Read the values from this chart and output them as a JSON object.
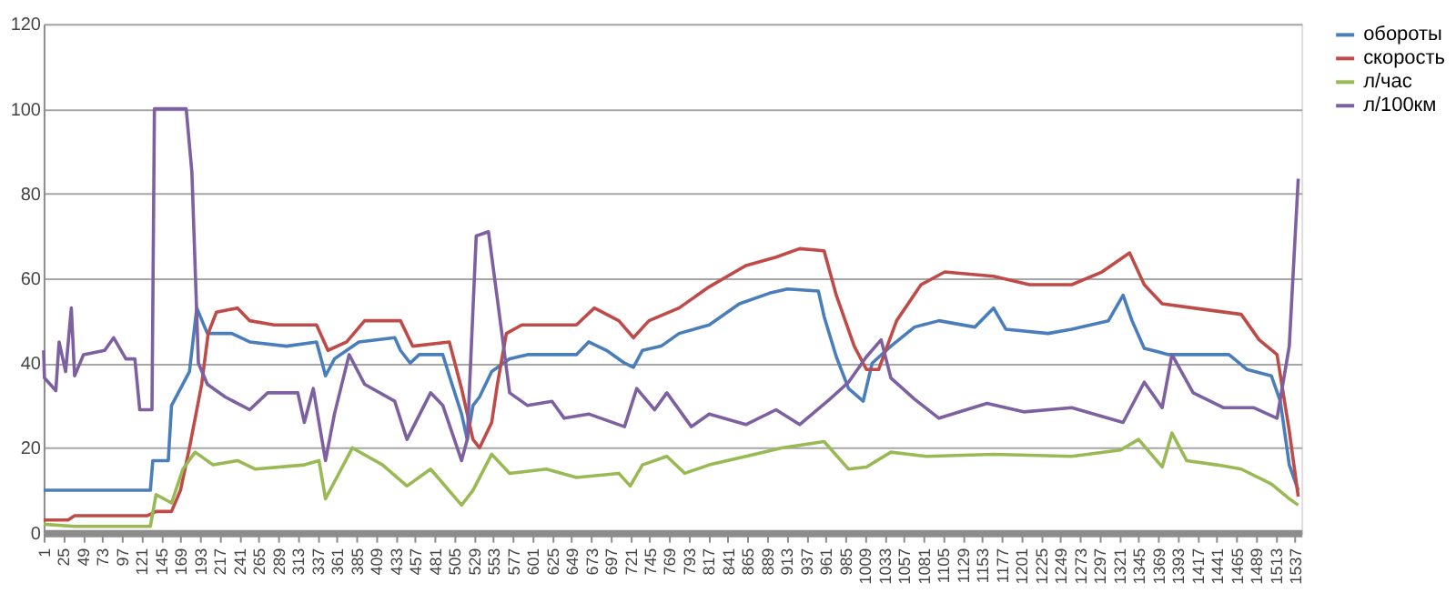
{
  "chart_data": {
    "type": "line",
    "xlim": [
      1,
      1545
    ],
    "xticks": [
      1,
      25,
      49,
      73,
      97,
      121,
      145,
      169,
      193,
      217,
      241,
      265,
      289,
      313,
      337,
      361,
      385,
      409,
      433,
      457,
      481,
      505,
      529,
      553,
      577,
      601,
      625,
      649,
      673,
      697,
      721,
      745,
      769,
      793,
      817,
      841,
      865,
      889,
      913,
      937,
      961,
      985,
      1009,
      1033,
      1057,
      1081,
      1105,
      1129,
      1153,
      1177,
      1201,
      1225,
      1249,
      1273,
      1297,
      1321,
      1345,
      1369,
      1393,
      1417,
      1441,
      1465,
      1489,
      1513,
      1537
    ],
    "ylim": [
      0,
      120
    ],
    "yticks": [
      0,
      20,
      40,
      60,
      80,
      100,
      120
    ],
    "grid": "y",
    "legend": "right",
    "marker": "none",
    "line_style": "solid",
    "series": [
      {
        "name": "обороты",
        "color": "#4a7ebb",
        "x": [
          1,
          132,
          135,
          154,
          158,
          180,
          189,
          202,
          232,
          254,
          299,
          336,
          343,
          347,
          358,
          373,
          388,
          432,
          439,
          451,
          462,
          491,
          499,
          514,
          521,
          528,
          536,
          551,
          573,
          595,
          655,
          670,
          692,
          714,
          725,
          736,
          759,
          781,
          818,
          855,
          892,
          914,
          952,
          959,
          974,
          989,
          1007,
          1018,
          1041,
          1070,
          1100,
          1144,
          1167,
          1182,
          1234,
          1263,
          1308,
          1326,
          1337,
          1352,
          1382,
          1456,
          1478,
          1508,
          1519,
          1530,
          1541
        ],
        "values": [
          10,
          10,
          17,
          17,
          30,
          38,
          53,
          47,
          47,
          45,
          44,
          45,
          40,
          37,
          41,
          43,
          45,
          46,
          43,
          40,
          42,
          42,
          37,
          28,
          22,
          30,
          32,
          38,
          41,
          42,
          42,
          45,
          43,
          40,
          39,
          43,
          44,
          47,
          49,
          54,
          56.5,
          57.5,
          57,
          51,
          41.5,
          34,
          31,
          40,
          44,
          48.5,
          50,
          48.5,
          53,
          48,
          47,
          48,
          50,
          56,
          50,
          43.5,
          42,
          42,
          38.5,
          37,
          31,
          16,
          10
        ]
      },
      {
        "name": "скорость",
        "color": "#be4b48",
        "x": [
          1,
          31,
          39,
          128,
          139,
          158,
          169,
          180,
          195,
          203,
          213,
          239,
          254,
          284,
          336,
          350,
          373,
          395,
          439,
          454,
          499,
          514,
          528,
          536,
          551,
          558,
          569,
          588,
          655,
          677,
          707,
          725,
          744,
          781,
          818,
          863,
          900,
          929,
          959,
          974,
          996,
          1011,
          1026,
          1048,
          1078,
          1107,
          1167,
          1211,
          1263,
          1300,
          1334,
          1352,
          1374,
          1412,
          1471,
          1493,
          1515,
          1530,
          1541
        ],
        "values": [
          3,
          3,
          4,
          4,
          5,
          5,
          10,
          20,
          35,
          47,
          52,
          53,
          50,
          49,
          49,
          43,
          45,
          50,
          50,
          44,
          45,
          34,
          22,
          20,
          26,
          35,
          47,
          49,
          49,
          53,
          50,
          46,
          50,
          53,
          58,
          63,
          65,
          67,
          66.5,
          56,
          44,
          38.5,
          38.5,
          50,
          58.5,
          61.5,
          60.5,
          58.5,
          58.5,
          61.5,
          66,
          58.5,
          54,
          53,
          51.5,
          45.5,
          42,
          24,
          8.5
        ]
      },
      {
        "name": "л/час",
        "color": "#98b954",
        "x": [
          1,
          39,
          132,
          139,
          158,
          172,
          187,
          209,
          239,
          261,
          321,
          339,
          347,
          358,
          380,
          417,
          447,
          476,
          514,
          528,
          551,
          573,
          618,
          655,
          707,
          721,
          736,
          766,
          788,
          818,
          863,
          907,
          959,
          989,
          1011,
          1041,
          1085,
          1167,
          1263,
          1323,
          1345,
          1374,
          1386,
          1404,
          1441,
          1471,
          1508,
          1530,
          1541
        ],
        "values": [
          2,
          1.5,
          1.5,
          9,
          7,
          15,
          19,
          16,
          17,
          15,
          16,
          17,
          8,
          12,
          20,
          16,
          11,
          15,
          6.5,
          10,
          18.5,
          14,
          15,
          13,
          14,
          11,
          16,
          18,
          14,
          16,
          18,
          20,
          21.5,
          15,
          15.5,
          19,
          18,
          18.5,
          18,
          19.5,
          22,
          15.5,
          23.5,
          17,
          16,
          15,
          11.5,
          8,
          6.5
        ]
      },
      {
        "name": "л/100км",
        "color": "#7d60a0",
        "x": [
          1,
          2,
          16,
          20,
          28,
          35,
          39,
          50,
          76,
          87,
          102,
          113,
          119,
          134,
          137,
          176,
          183,
          191,
          202,
          224,
          254,
          276,
          313,
          321,
          332,
          347,
          358,
          376,
          395,
          432,
          447,
          476,
          491,
          514,
          521,
          532,
          547,
          558,
          573,
          595,
          625,
          640,
          670,
          714,
          729,
          751,
          766,
          796,
          818,
          863,
          900,
          929,
          966,
          989,
          1011,
          1029,
          1041,
          1070,
          1100,
          1159,
          1204,
          1263,
          1326,
          1352,
          1374,
          1386,
          1412,
          1449,
          1486,
          1515,
          1530,
          1541
        ],
        "values": [
          43,
          36.5,
          33.5,
          45,
          38,
          53,
          37,
          42,
          43,
          46,
          41,
          41,
          29,
          29,
          100,
          100,
          85,
          40,
          35,
          32,
          29,
          33,
          33,
          26,
          34,
          17,
          28,
          42,
          35,
          31,
          22,
          33,
          30,
          17,
          22,
          70,
          71,
          55,
          33,
          30,
          31,
          27,
          28,
          25,
          34,
          29,
          33,
          25,
          28,
          25.5,
          29,
          25.5,
          31.5,
          35.5,
          41.5,
          45.5,
          36.5,
          31.5,
          27,
          30.5,
          28.5,
          29.5,
          26,
          35.5,
          29.5,
          42,
          33,
          29.5,
          29.5,
          27,
          44,
          83.5
        ]
      }
    ]
  }
}
